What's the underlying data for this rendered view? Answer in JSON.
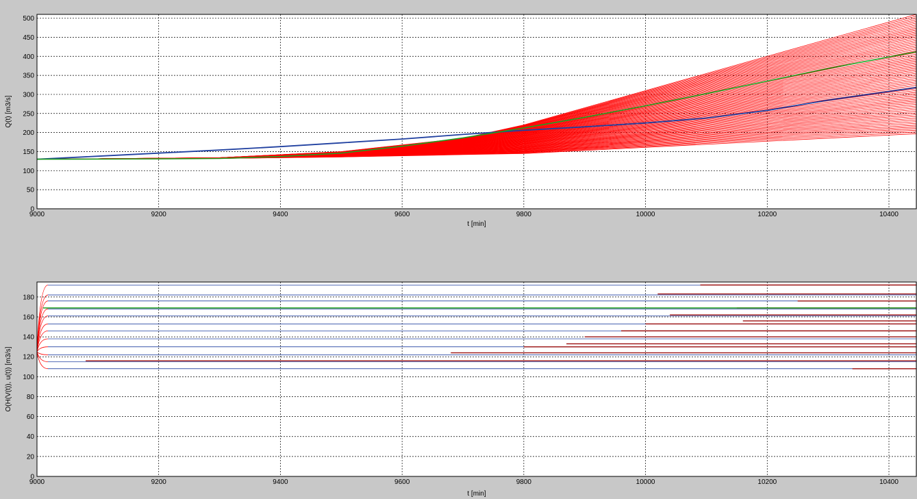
{
  "figure": {
    "background": "#c8c8c8",
    "axes_background": "#ffffff"
  },
  "colors": {
    "ensemble": "#ff0000",
    "dark_ensemble": "#9c1010",
    "observed": "#2040a0",
    "median": "#1f9f1f",
    "grid": "#000000"
  },
  "chart_data": [
    {
      "type": "line",
      "title": "",
      "xlabel": "t [min]",
      "ylabel": "Q(t) [m3/s]",
      "xlim": [
        9000,
        10445
      ],
      "ylim": [
        0,
        510
      ],
      "xticks": [
        9000,
        9200,
        9400,
        9600,
        9800,
        10000,
        10200,
        10400
      ],
      "yticks": [
        0,
        50,
        100,
        150,
        200,
        250,
        300,
        350,
        400,
        450,
        500
      ],
      "grid": true,
      "series": [
        {
          "color": "#2040a0",
          "width": 1.8,
          "x": [
            9000,
            9100,
            9200,
            9300,
            9400,
            9500,
            9600,
            9700,
            9800,
            9900,
            10000,
            10100,
            10200,
            10300,
            10445
          ],
          "y": [
            130,
            138,
            146,
            154,
            163,
            173,
            183,
            195,
            206,
            215,
            225,
            238,
            258,
            285,
            318
          ]
        },
        {
          "color": "#1f9f1f",
          "width": 1.6,
          "x": [
            9000,
            9200,
            9300,
            9400,
            9500,
            9600,
            9700,
            9800,
            9900,
            10000,
            10100,
            10200,
            10300,
            10445
          ],
          "y": [
            130,
            131,
            132,
            137,
            146,
            164,
            186,
            212,
            240,
            270,
            302,
            335,
            368,
            412
          ]
        }
      ],
      "ensemble": {
        "color": "#ff0000",
        "count": 70,
        "x": [
          9000,
          9300,
          9500,
          9700,
          9800,
          10445
        ],
        "y_first": [
          130,
          132,
          136,
          142,
          145,
          197
        ],
        "y_last": [
          130,
          134,
          150,
          185,
          220,
          510
        ]
      }
    },
    {
      "type": "line",
      "title": "",
      "xlabel": "t [min]",
      "ylabel": "O(H(V(t)), u(t)) [m3/s]",
      "xlim": [
        9000,
        10445
      ],
      "ylim": [
        0,
        195
      ],
      "xticks": [
        9000,
        9200,
        9400,
        9600,
        9800,
        10000,
        10200,
        10400
      ],
      "yticks": [
        0,
        20,
        40,
        60,
        80,
        100,
        120,
        140,
        160,
        180
      ],
      "grid": true,
      "reference_levels": {
        "color": "#2040a0",
        "values": [
          108,
          115,
          122,
          130,
          138,
          146,
          153,
          161,
          168,
          176,
          182,
          192
        ]
      },
      "highlight_level": {
        "color": "#1f9f1f",
        "value": 169,
        "x_start": 9010
      },
      "released_levels": {
        "color": "#9c1010",
        "segments": [
          {
            "y": 192,
            "x_start": 10090
          },
          {
            "y": 183,
            "x_start": 10020
          },
          {
            "y": 176,
            "x_start": 10250
          },
          {
            "y": 169,
            "x_start": 10150
          },
          {
            "y": 162,
            "x_start": 10040
          },
          {
            "y": 156,
            "x_start": 10160
          },
          {
            "y": 153,
            "x_start": 10000
          },
          {
            "y": 146,
            "x_start": 9960
          },
          {
            "y": 140,
            "x_start": 9900
          },
          {
            "y": 133,
            "x_start": 9870
          },
          {
            "y": 130,
            "x_start": 9800
          },
          {
            "y": 124,
            "x_start": 9680
          },
          {
            "y": 116,
            "x_start": 9080
          },
          {
            "y": 108,
            "x_start": 10340
          }
        ]
      },
      "initial_value": 125
    }
  ]
}
